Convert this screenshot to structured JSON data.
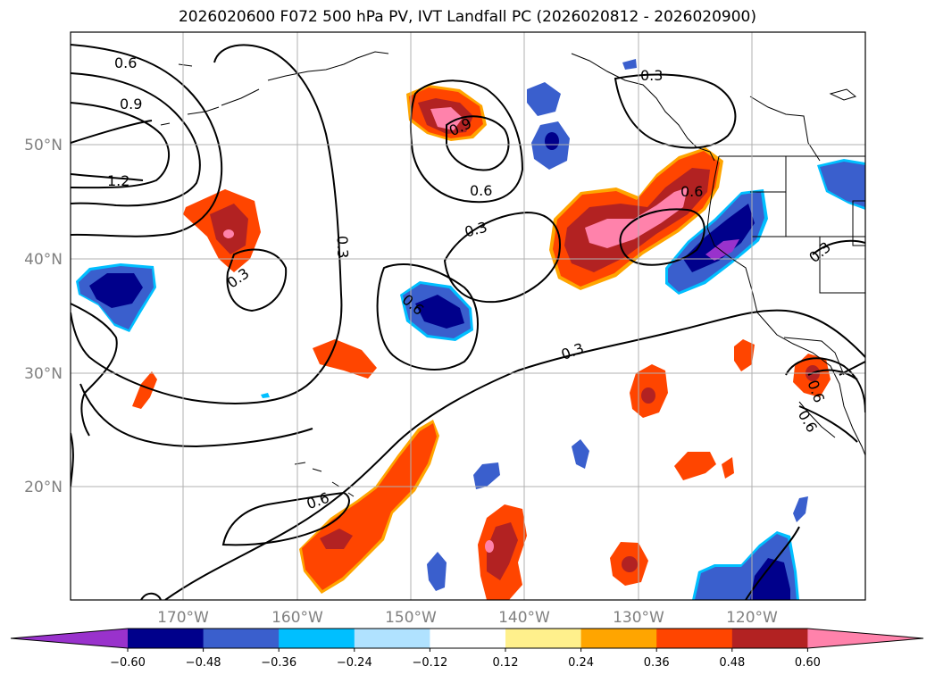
{
  "title": "2026020600 F072 500 hPa PV, IVT Landfall PC (2026020812 - 2026020900)",
  "lat_labels": [
    "50°N",
    "40°N",
    "30°N",
    "20°N"
  ],
  "lon_labels": [
    "170°W",
    "160°W",
    "150°W",
    "140°W",
    "130°W",
    "120°W"
  ],
  "contour_labels": [
    "0.6",
    "0.9",
    "1.2",
    "0.9",
    "0.6",
    "0.3",
    "0.3",
    "0.3",
    "0.3",
    "0.6",
    "0.3",
    "0.6",
    "0.6",
    "0.3",
    "0.6",
    "0.6"
  ],
  "colorbar": {
    "ticks": [
      "−0.60",
      "−0.48",
      "−0.36",
      "−0.24",
      "−0.12",
      "0.12",
      "0.24",
      "0.36",
      "0.48",
      "0.60"
    ],
    "colors": [
      "#9932cc",
      "#00008b",
      "#3a5fcd",
      "#00bfff",
      "#b0e2ff",
      "#ffffff",
      "#fff08c",
      "#ffa500",
      "#ff4500",
      "#b22222",
      "#ff82ab"
    ]
  }
}
